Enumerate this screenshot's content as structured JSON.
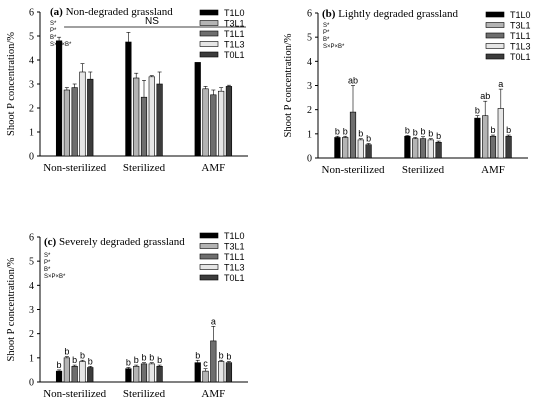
{
  "chart_data": [
    {
      "type": "bar",
      "panel_label": "(a)",
      "title": "Non-degraded grassland",
      "ylabel": "Shoot P concentration/%",
      "ylim": [
        0,
        6
      ],
      "yticks": [
        "0",
        "1",
        "2",
        "3",
        "4",
        "5",
        "6"
      ],
      "categories": [
        "Non-sterilized",
        "Sterilized",
        "AMF"
      ],
      "significance": [
        "S*",
        "P*",
        "B*",
        "S×P×B*"
      ],
      "ns_label": "NS",
      "series": [
        {
          "name": "T1L0",
          "values": [
            4.8,
            4.75,
            3.9
          ],
          "errors": [
            0.15,
            0.4,
            0.0
          ]
        },
        {
          "name": "T3L1",
          "values": [
            2.75,
            3.25,
            2.8
          ],
          "errors": [
            0.1,
            0.2,
            0.1
          ]
        },
        {
          "name": "T1L1",
          "values": [
            2.85,
            2.45,
            2.55
          ],
          "errors": [
            0.15,
            0.7,
            0.2
          ]
        },
        {
          "name": "T1L3",
          "values": [
            3.5,
            3.3,
            2.7
          ],
          "errors": [
            0.35,
            0.05,
            0.15
          ]
        },
        {
          "name": "T0L1",
          "values": [
            3.2,
            3.0,
            2.9
          ],
          "errors": [
            0.3,
            0.5,
            0.05
          ]
        }
      ],
      "letters": null
    },
    {
      "type": "bar",
      "panel_label": "(b)",
      "title": "Lightly degraded grassland",
      "ylabel": "Shoot P concentration/%",
      "ylim": [
        0,
        6
      ],
      "yticks": [
        "0",
        "1",
        "2",
        "3",
        "4",
        "5",
        "6"
      ],
      "categories": [
        "Non-sterilized",
        "Sterilized",
        "AMF"
      ],
      "significance": [
        "S*",
        "P*",
        "B*",
        "S×P×B*"
      ],
      "ns_label": "",
      "series": [
        {
          "name": "T1L0",
          "values": [
            0.85,
            0.9,
            1.65
          ],
          "errors": [
            0.05,
            0.03,
            0.1
          ]
        },
        {
          "name": "T3L1",
          "values": [
            0.85,
            0.8,
            1.75
          ],
          "errors": [
            0.05,
            0.05,
            0.6
          ]
        },
        {
          "name": "T1L1",
          "values": [
            1.9,
            0.8,
            0.9
          ],
          "errors": [
            1.1,
            0.08,
            0.05
          ]
        },
        {
          "name": "T1L3",
          "values": [
            0.75,
            0.75,
            2.05
          ],
          "errors": [
            0.05,
            0.05,
            0.8
          ]
        },
        {
          "name": "T0L1",
          "values": [
            0.55,
            0.65,
            0.9
          ],
          "errors": [
            0.05,
            0.05,
            0.05
          ]
        }
      ],
      "letters": [
        [
          "b",
          "b",
          "b"
        ],
        [
          "b",
          "b",
          "ab"
        ],
        [
          "ab",
          "b",
          "b"
        ],
        [
          "b",
          "b",
          "a"
        ],
        [
          "b",
          "b",
          "b"
        ]
      ]
    },
    {
      "type": "bar",
      "panel_label": "(c)",
      "title": "Severely degraded grassland",
      "ylabel": "Shoot P concentration/%",
      "ylim": [
        0,
        6
      ],
      "yticks": [
        "0",
        "1",
        "2",
        "3",
        "4",
        "5",
        "6"
      ],
      "categories": [
        "Non-sterilized",
        "Sterilized",
        "AMF"
      ],
      "significance": [
        "S*",
        "P*",
        "B*",
        "S×P×B*"
      ],
      "ns_label": "",
      "series": [
        {
          "name": "T1L0",
          "values": [
            0.45,
            0.55,
            0.8
          ],
          "errors": [
            0.05,
            0.05,
            0.1
          ]
        },
        {
          "name": "T3L1",
          "values": [
            1.0,
            0.65,
            0.45
          ],
          "errors": [
            0.05,
            0.05,
            0.1
          ]
        },
        {
          "name": "T1L1",
          "values": [
            0.65,
            0.75,
            1.7
          ],
          "errors": [
            0.05,
            0.05,
            0.6
          ]
        },
        {
          "name": "T1L3",
          "values": [
            0.85,
            0.75,
            0.85
          ],
          "errors": [
            0.05,
            0.05,
            0.05
          ]
        },
        {
          "name": "T0L1",
          "values": [
            0.6,
            0.65,
            0.8
          ],
          "errors": [
            0.05,
            0.05,
            0.05
          ]
        }
      ],
      "letters": [
        [
          "b",
          "b",
          "b"
        ],
        [
          "b",
          "b",
          "c"
        ],
        [
          "b",
          "b",
          "a"
        ],
        [
          "b",
          "b",
          "b"
        ],
        [
          "b",
          "b",
          "b"
        ]
      ]
    }
  ],
  "colors": {
    "T1L0": "#000000",
    "T3L1": "#b4b4b4",
    "T1L1": "#6e6e6e",
    "T1L3": "#e6e6e6",
    "T0L1": "#3c3c3c"
  }
}
